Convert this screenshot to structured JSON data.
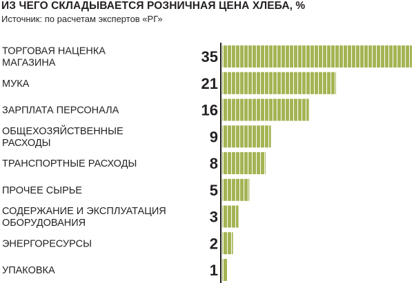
{
  "header": {
    "title": "ИЗ ЧЕГО СКЛАДЫВАЕТСЯ РОЗНИЧНАЯ ЦЕНА ХЛЕБА, %",
    "subtitle": "Источник: по расчетам экспертов «РГ»"
  },
  "colors": {
    "bar": "#a4b454",
    "bar_stripe": "#ffffff",
    "axis": "#231f20",
    "text": "#231f20"
  },
  "chart_data": {
    "type": "bar",
    "orientation": "horizontal",
    "title": "ИЗ ЧЕГО СКЛАДЫВАЕТСЯ РОЗНИЧНАЯ ЦЕНА ХЛЕБА, %",
    "subtitle": "Источник: по расчетам экспертов «РГ»",
    "categories": [
      [
        "ТОРГОВАЯ НАЦЕНКА",
        "МАГАЗИНА"
      ],
      [
        "МУКА"
      ],
      [
        "ЗАРПЛАТА ПЕРСОНАЛА"
      ],
      [
        "ОБЩЕХОЗЯЙСТВЕННЫЕ",
        "РАСХОДЫ"
      ],
      [
        "ТРАНСПОРТНЫЕ РАСХОДЫ"
      ],
      [
        "ПРОЧЕЕ СЫРЬЕ"
      ],
      [
        "СОДЕРЖАНИЕ И ЭКСПЛУАТАЦИЯ",
        "ОБОРУДОВАНИЯ"
      ],
      [
        "ЭНЕРГОРЕСУРСЫ"
      ],
      [
        "УПАКОВКА"
      ]
    ],
    "values": [
      35,
      21,
      16,
      9,
      8,
      5,
      3,
      2,
      1
    ],
    "xlim": [
      0,
      35
    ],
    "grid": false,
    "legend": "none"
  }
}
